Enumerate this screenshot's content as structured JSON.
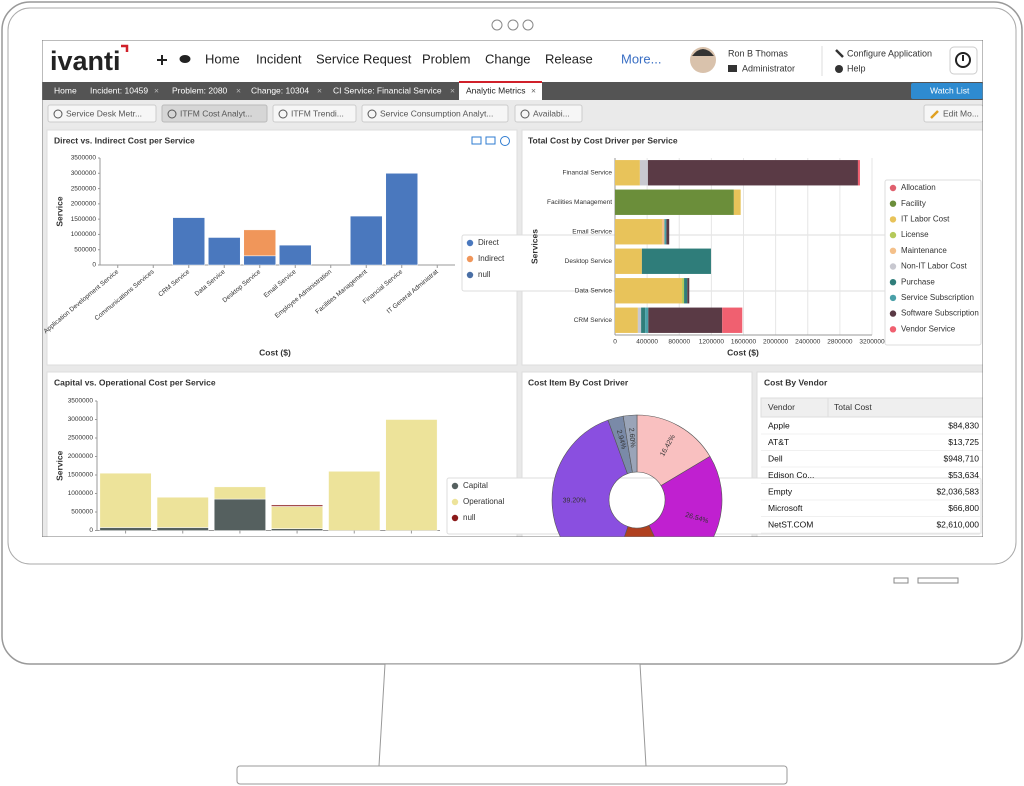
{
  "header": {
    "logo": "ivanti",
    "nav": [
      "Home",
      "Incident",
      "Service Request",
      "Problem",
      "Change",
      "Release",
      "More..."
    ],
    "user": {
      "name": "Ron B Thomas",
      "role": "Administrator"
    },
    "links": [
      "Configure Application",
      "Help"
    ]
  },
  "tabs": [
    "Home",
    "Incident: 10459",
    "Problem: 2080",
    "Change: 10304",
    "CI Service: Financial Service",
    "Analytic Metrics"
  ],
  "watch_list": "Watch List",
  "dashboards": [
    "Service Desk Metr...",
    "ITFM Cost Analyt...",
    "ITFM Trendi...",
    "Service Consumption Analyt...",
    "Availabi..."
  ],
  "edit": "Edit Mo...",
  "panels": [
    {
      "chart_data": {
        "type": "stacked-bar",
        "title": "Direct vs. Indirect Cost per Service",
        "y_label": "Service",
        "x_label": "Cost ($)",
        "categories": [
          "Application Development Service",
          "Communications Services",
          "CRM Service",
          "Data Service",
          "Desktop Service",
          "Email Service",
          "Employee Administration",
          "Facilities Management",
          "Financial Service",
          "IT General Administrat"
        ],
        "series": [
          {
            "name": "Direct",
            "color": "#4a78be",
            "values": [
              0,
              0,
              1550000,
              900000,
              300000,
              650000,
              0,
              1600000,
              3000000,
              0
            ]
          },
          {
            "name": "Indirect",
            "color": "#f0965a",
            "values": [
              0,
              0,
              0,
              0,
              850000,
              0,
              0,
              0,
              0,
              0
            ]
          },
          {
            "name": "null",
            "color": "#4a6fa5",
            "values": [
              0,
              0,
              0,
              0,
              0,
              0,
              0,
              0,
              0,
              0
            ]
          }
        ],
        "ylim": [
          0,
          3500000
        ],
        "yticks": [
          0,
          500000,
          1000000,
          1500000,
          2000000,
          2500000,
          3000000,
          3500000
        ],
        "legend": "right"
      }
    },
    {
      "chart_data": {
        "type": "stacked-barh",
        "title": "Total Cost by Cost Driver per Service",
        "y_label": "Services",
        "x_label": "Cost ($)",
        "categories": [
          "Financial Service",
          "Facilities Management",
          "Email Service",
          "Desktop Service",
          "Data Service",
          "CRM Service"
        ],
        "series": [
          {
            "name": "Allocation",
            "color": "#e0606e",
            "values": [
              0,
              0,
              0,
              0,
              0,
              0
            ]
          },
          {
            "name": "Facility",
            "color": "#6b8e3a",
            "values": [
              0,
              1480000,
              0,
              0,
              0,
              0
            ]
          },
          {
            "name": "IT Labor Cost",
            "color": "#e8c35a",
            "values": [
              310000,
              85000,
              585000,
              335000,
              835000,
              285000
            ]
          },
          {
            "name": "License",
            "color": "#b5c95a",
            "values": [
              0,
              0,
              0,
              0,
              25000,
              0
            ]
          },
          {
            "name": "Maintenance",
            "color": "#f4c08a",
            "values": [
              0,
              0,
              30000,
              0,
              0,
              0
            ]
          },
          {
            "name": "Non-IT Labor Cost",
            "color": "#c8c8d0",
            "values": [
              100000,
              0,
              0,
              0,
              0,
              40000
            ]
          },
          {
            "name": "Purchase",
            "color": "#2f7d7a",
            "values": [
              0,
              0,
              0,
              860000,
              40000,
              50000
            ]
          },
          {
            "name": "Service Subscription",
            "color": "#4aa0a8",
            "values": [
              0,
              0,
              25000,
              0,
              0,
              40000
            ]
          },
          {
            "name": "Software Subscription",
            "color": "#5a3a45",
            "values": [
              2615000,
              0,
              35000,
              0,
              25000,
              920000
            ]
          },
          {
            "name": "Vendor Service",
            "color": "#f06070",
            "values": [
              25000,
              0,
              0,
              0,
              0,
              250000
            ]
          }
        ],
        "xlim": [
          0,
          3200000
        ],
        "xticks": [
          0,
          400000,
          800000,
          1200000,
          1600000,
          2000000,
          2400000,
          2800000,
          3200000
        ],
        "grid": true,
        "legend": "right"
      }
    },
    {
      "chart_data": {
        "type": "stacked-bar",
        "title": "Capital vs. Operational Cost per Service",
        "y_label": "Service",
        "categories": [
          null,
          null,
          null,
          null,
          null,
          null
        ],
        "series": [
          {
            "name": "Capital",
            "color": "#55605f",
            "values": [
              80000,
              80000,
              850000,
              50000,
              0,
              0
            ]
          },
          {
            "name": "Operational",
            "color": "#ede39a",
            "values": [
              1470000,
              820000,
              330000,
              600000,
              1600000,
              3000000
            ]
          },
          {
            "name": "null",
            "color": "#8b1a1a",
            "values": [
              0,
              0,
              0,
              40000,
              0,
              0
            ]
          }
        ],
        "ylim": [
          0,
          3500000
        ],
        "yticks": [
          0,
          500000,
          1000000,
          1500000,
          2000000,
          2500000,
          3000000,
          3500000
        ],
        "legend": "right"
      }
    },
    {
      "chart_data": {
        "type": "donut",
        "title": "Cost Item By Cost Driver",
        "values": [
          16.42,
          26.54,
          12.3,
          39.2,
          2.94,
          2.6
        ],
        "value_labels": [
          "16.42%",
          "26.54%",
          null,
          "39.20%",
          "2.94%",
          "2.60%"
        ],
        "colors": [
          "#f9c0c0",
          "#c020d0",
          "#b04020",
          "#8a4fe0",
          "#7a8aa8",
          "#9aa4b8"
        ]
      }
    }
  ],
  "vendor_table": {
    "title": "Cost By Vendor",
    "columns": [
      "Vendor",
      "Total Cost"
    ],
    "rows": [
      [
        "Apple",
        "$84,830"
      ],
      [
        "AT&T",
        "$13,725"
      ],
      [
        "Dell",
        "$948,710"
      ],
      [
        "Edison Co...",
        "$53,634"
      ],
      [
        "Empty",
        "$2,036,583"
      ],
      [
        "Microsoft",
        "$66,800"
      ],
      [
        "NetST.COM",
        "$2,610,000"
      ]
    ]
  }
}
